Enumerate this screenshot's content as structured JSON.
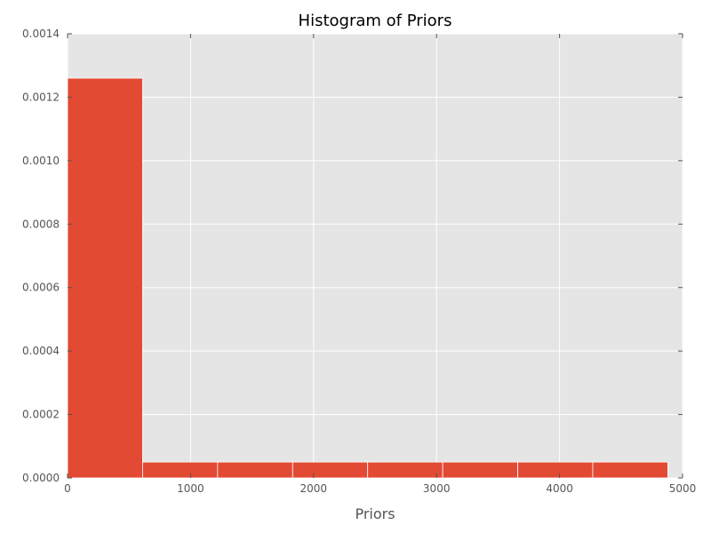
{
  "chart_data": {
    "type": "bar",
    "title": "Histogram of Priors",
    "xlabel": "Priors",
    "ylabel": "",
    "xlim": [
      0,
      5000
    ],
    "ylim": [
      0,
      0.0014
    ],
    "grid": true,
    "bin_edges": [
      0,
      610,
      1220,
      1830,
      2440,
      3050,
      3660,
      4270,
      4880
    ],
    "values": [
      0.00126,
      5e-05,
      5e-05,
      5e-05,
      5e-05,
      5e-05,
      5e-05,
      5e-05
    ],
    "x_ticks": [
      0,
      1000,
      2000,
      3000,
      4000,
      5000
    ],
    "x_tick_labels": [
      "0",
      "1000",
      "2000",
      "3000",
      "4000",
      "5000"
    ],
    "y_ticks": [
      0,
      0.0002,
      0.0004,
      0.0006,
      0.0008,
      0.001,
      0.0012,
      0.0014
    ],
    "y_tick_labels": [
      "0.0000",
      "0.0002",
      "0.0004",
      "0.0006",
      "0.0008",
      "0.0010",
      "0.0012",
      "0.0014"
    ],
    "colors": {
      "bar": "#e24a33",
      "plot_background": "#e5e5e5",
      "grid": "#ffffff",
      "tick_text": "#555555"
    }
  }
}
